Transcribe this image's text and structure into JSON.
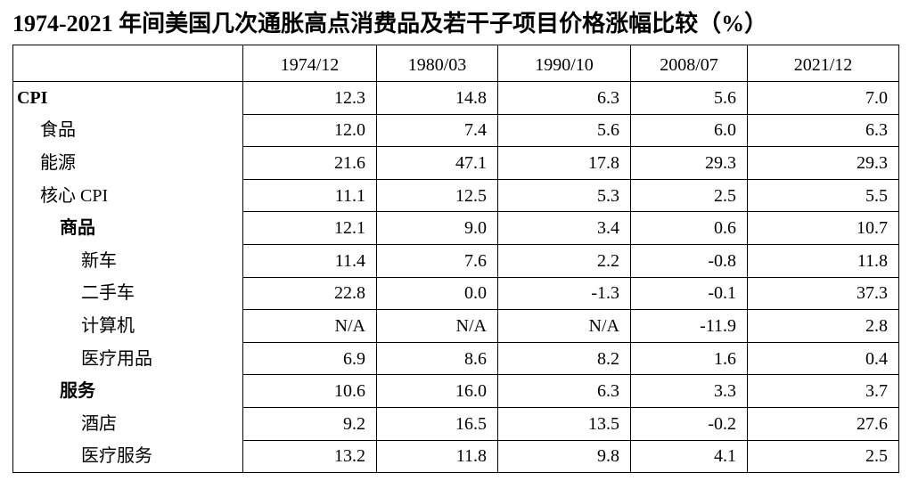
{
  "title": "1974-2021 年间美国几次通胀高点消费品及若干子项目价格涨幅比较（%）",
  "table": {
    "columns": [
      "1974/12",
      "1980/03",
      "1990/10",
      "2008/07",
      "2021/12"
    ],
    "rows": [
      {
        "label": "CPI",
        "level": 0,
        "bold": true,
        "values": [
          "12.3",
          "14.8",
          "6.3",
          "5.6",
          "7.0"
        ]
      },
      {
        "label": "食品",
        "level": 1,
        "bold": false,
        "values": [
          "12.0",
          "7.4",
          "5.6",
          "6.0",
          "6.3"
        ]
      },
      {
        "label": "能源",
        "level": 1,
        "bold": false,
        "values": [
          "21.6",
          "47.1",
          "17.8",
          "29.3",
          "29.3"
        ]
      },
      {
        "label": "核心 CPI",
        "level": 1,
        "bold": false,
        "values": [
          "11.1",
          "12.5",
          "5.3",
          "2.5",
          "5.5"
        ]
      },
      {
        "label": "商品",
        "level": 2,
        "bold": true,
        "values": [
          "12.1",
          "9.0",
          "3.4",
          "0.6",
          "10.7"
        ]
      },
      {
        "label": "新车",
        "level": 3,
        "bold": false,
        "values": [
          "11.4",
          "7.6",
          "2.2",
          "-0.8",
          "11.8"
        ]
      },
      {
        "label": "二手车",
        "level": 3,
        "bold": false,
        "values": [
          "22.8",
          "0.0",
          "-1.3",
          "-0.1",
          "37.3"
        ]
      },
      {
        "label": "计算机",
        "level": 3,
        "bold": false,
        "values": [
          "N/A",
          "N/A",
          "N/A",
          "-11.9",
          "2.8"
        ]
      },
      {
        "label": "医疗用品",
        "level": 3,
        "bold": false,
        "values": [
          "6.9",
          "8.6",
          "8.2",
          "1.6",
          "0.4"
        ]
      },
      {
        "label": "服务",
        "level": 2,
        "bold": true,
        "values": [
          "10.6",
          "16.0",
          "6.3",
          "3.3",
          "3.7"
        ]
      },
      {
        "label": "酒店",
        "level": 3,
        "bold": false,
        "values": [
          "9.2",
          "16.5",
          "13.5",
          "-0.2",
          "27.6"
        ]
      },
      {
        "label": "医疗服务",
        "level": 3,
        "bold": false,
        "values": [
          "13.2",
          "11.8",
          "9.8",
          "4.1",
          "2.5"
        ]
      }
    ]
  }
}
